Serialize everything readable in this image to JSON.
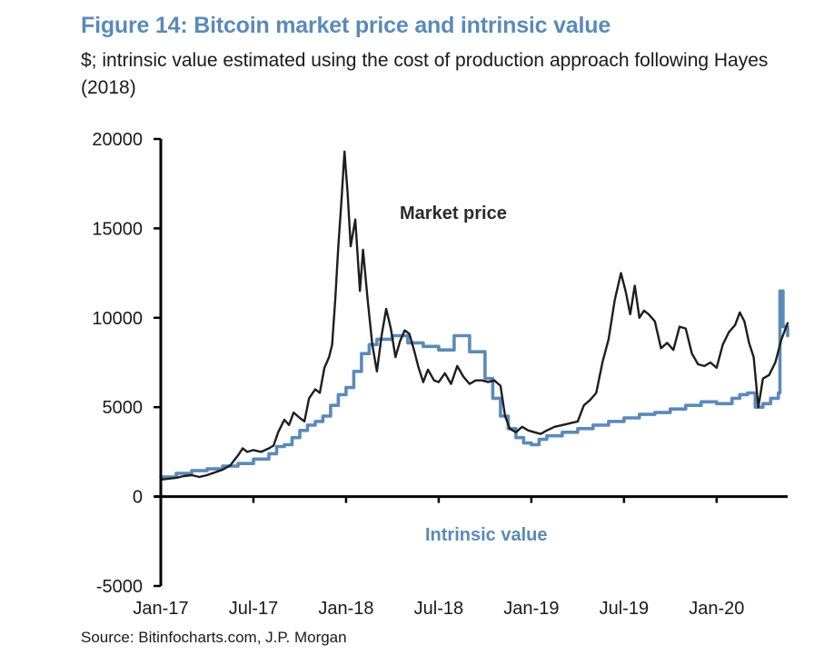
{
  "figure": {
    "title": "Figure 14: Bitcoin market price and intrinsic value",
    "subtitle": "$; intrinsic value estimated using the cost of production approach following Hayes (2018)",
    "source": "Source: Bitinfocharts.com, J.P. Morgan"
  },
  "chart_data": {
    "type": "line",
    "title": "Figure 14: Bitcoin market price and intrinsic value",
    "xlabel": "",
    "ylabel": "$",
    "ylim": [
      -5000,
      20000
    ],
    "yticks": [
      -5000,
      0,
      5000,
      10000,
      15000,
      20000
    ],
    "ytick_labels": [
      "-5000",
      "0",
      "5000",
      "10000",
      "15000",
      "20000"
    ],
    "xlim_months_since_jan17": [
      0,
      40.6
    ],
    "xticks_months_since_jan17": [
      0,
      6,
      12,
      18,
      24,
      30,
      36
    ],
    "xtick_labels": [
      "Jan-17",
      "Jul-17",
      "Jan-18",
      "Jul-18",
      "Jan-19",
      "Jul-19",
      "Jan-20"
    ],
    "grid": false,
    "legend": "none (inline annotations)",
    "annotations": {
      "market_price": "Market price",
      "intrinsic_value": "Intrinsic value"
    },
    "colors": {
      "market_price": "#1e1e1e",
      "intrinsic_value": "#5b8ab8",
      "title": "#5b8ab8"
    },
    "series": [
      {
        "name": "Market price",
        "x_months_since_jan17": [
          0,
          0.5,
          1,
          1.5,
          2,
          2.5,
          3,
          3.5,
          4,
          4.5,
          5,
          5.3,
          5.6,
          6,
          6.5,
          7,
          7.3,
          7.6,
          8,
          8.3,
          8.6,
          9,
          9.3,
          9.6,
          10,
          10.3,
          10.6,
          10.9,
          11.1,
          11.3,
          11.5,
          11.7,
          11.9,
          12.1,
          12.3,
          12.6,
          12.9,
          13.1,
          13.4,
          13.7,
          14,
          14.3,
          14.6,
          14.9,
          15.2,
          15.5,
          15.8,
          16.1,
          16.4,
          16.7,
          17,
          17.3,
          17.7,
          18,
          18.4,
          18.8,
          19.2,
          19.6,
          20,
          20.4,
          20.8,
          21.2,
          21.6,
          22,
          22.3,
          22.6,
          23,
          23.4,
          23.8,
          24.2,
          24.6,
          25,
          25.5,
          26,
          26.5,
          27,
          27.4,
          27.8,
          28.2,
          28.6,
          29,
          29.4,
          29.8,
          30.1,
          30.4,
          30.7,
          31,
          31.3,
          31.6,
          32,
          32.4,
          32.8,
          33.2,
          33.6,
          34,
          34.4,
          34.8,
          35.2,
          35.6,
          36,
          36.4,
          36.8,
          37.2,
          37.5,
          37.8,
          38.1,
          38.4,
          38.7,
          39,
          39.4,
          39.8,
          40.2,
          40.6
        ],
        "values": [
          950,
          1000,
          1050,
          1150,
          1200,
          1100,
          1200,
          1350,
          1500,
          1750,
          2300,
          2700,
          2500,
          2600,
          2500,
          2700,
          2850,
          3600,
          4300,
          4000,
          4700,
          4400,
          4200,
          5500,
          6000,
          5800,
          7200,
          7800,
          8500,
          11000,
          14000,
          16500,
          19300,
          17000,
          14000,
          15500,
          11500,
          13800,
          11000,
          8500,
          7000,
          9000,
          10500,
          9400,
          7800,
          8700,
          9300,
          9100,
          8200,
          7200,
          6400,
          7100,
          6500,
          6400,
          6900,
          6300,
          7300,
          6700,
          6300,
          6500,
          6500,
          6400,
          6500,
          6200,
          4500,
          3800,
          3600,
          3900,
          3700,
          3600,
          3500,
          3700,
          3900,
          4000,
          4100,
          4200,
          5100,
          5400,
          5800,
          7500,
          8800,
          11000,
          12500,
          11500,
          10200,
          11800,
          10000,
          10400,
          10200,
          9800,
          8300,
          8600,
          8200,
          9500,
          9400,
          8000,
          7400,
          7300,
          7500,
          7200,
          8500,
          9200,
          9600,
          10300,
          9800,
          8600,
          7800,
          5000,
          6600,
          6800,
          7500,
          8800,
          9700,
          9300
        ],
        "approximate": true
      },
      {
        "name": "Intrinsic value",
        "x_months_since_jan17": [
          0,
          1,
          2,
          3,
          4,
          5,
          6,
          7,
          7.5,
          8,
          8.5,
          9,
          9.5,
          10,
          10.5,
          11,
          11.5,
          12,
          12.5,
          13,
          13.5,
          14,
          15,
          16,
          17,
          18,
          19,
          20,
          21,
          21.5,
          22,
          22.5,
          23,
          23.5,
          24,
          24.5,
          25,
          26,
          27,
          28,
          29,
          30,
          31,
          32,
          33,
          34,
          35,
          36,
          37,
          37.5,
          38,
          38.5,
          39,
          39.5,
          40,
          40.1,
          40.3,
          40.6
        ],
        "values": [
          1100,
          1300,
          1450,
          1550,
          1700,
          1850,
          2100,
          2400,
          2800,
          2900,
          3300,
          3700,
          4000,
          4200,
          4500,
          5100,
          5700,
          6100,
          7000,
          8000,
          8500,
          8800,
          9000,
          8600,
          8400,
          8200,
          9000,
          8100,
          6600,
          5500,
          4500,
          3800,
          3300,
          3000,
          2900,
          3200,
          3400,
          3600,
          3800,
          4000,
          4200,
          4400,
          4600,
          4700,
          4900,
          5100,
          5300,
          5200,
          5500,
          5700,
          5800,
          5000,
          5200,
          5500,
          5800,
          11500,
          9500,
          9000
        ],
        "approximate": true
      }
    ]
  }
}
